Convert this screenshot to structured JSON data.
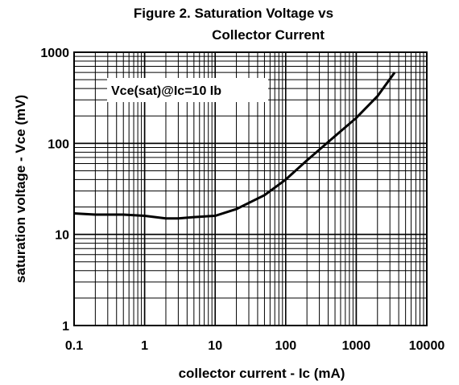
{
  "chart_data": {
    "type": "line",
    "title_line1": "Figure 2. Saturation Voltage vs",
    "title_line2": "Collector Current",
    "xlabel": "collector current - Ic (mA)",
    "ylabel": "saturation voltage -  Vce (mV)",
    "x_scale": "log",
    "y_scale": "log",
    "xlim": [
      0.1,
      10000
    ],
    "ylim": [
      1,
      1000
    ],
    "x_ticks": [
      0.1,
      1,
      10,
      100,
      1000,
      10000
    ],
    "x_tick_labels": [
      "0.1",
      "1",
      "10",
      "100",
      "1000",
      "10000"
    ],
    "y_ticks": [
      1,
      10,
      100,
      1000
    ],
    "y_tick_labels": [
      "1",
      "10",
      "100",
      "1000"
    ],
    "grid": true,
    "annotation": "Vce(sat)@Ic=10 Ib",
    "colors": {
      "line": "#000000",
      "grid": "#000000",
      "background": "#ffffff"
    },
    "series": [
      {
        "x": [
          0.1,
          0.2,
          0.5,
          1,
          2,
          3,
          5,
          10,
          20,
          50,
          100,
          200,
          500,
          1000,
          2000,
          3500
        ],
        "y": [
          17,
          16.5,
          16.5,
          16,
          15,
          15,
          15.5,
          16,
          19,
          27,
          40,
          65,
          120,
          190,
          330,
          600
        ]
      }
    ]
  }
}
